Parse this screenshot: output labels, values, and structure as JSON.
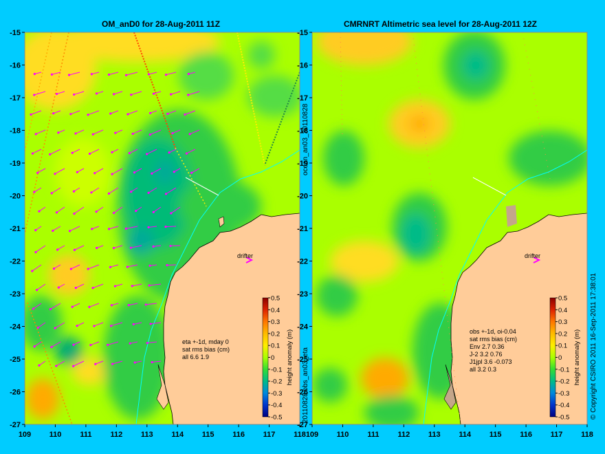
{
  "panels": [
    {
      "title": "OM_anD0 for 28-Aug-2011 11Z",
      "stats": [
        "eta +-1d, mday 0",
        "sat rms bias (cm)",
        "all 6.6 1.9"
      ]
    },
    {
      "title": "CMRNRT Altimetric sea level  for 28-Aug-2011 12Z",
      "stats": [
        "obs +-1d, oi-0.04",
        "sat rms bias (cm)",
        "Env    2.7 0.36",
        "J-2    3.2 0.76",
        "J1jpl  3.6 -0.073",
        "all 3.2 0.3"
      ]
    }
  ],
  "drifter_label": "drifter",
  "y_ticks": [
    "-15",
    "-16",
    "-17",
    "-18",
    "-19",
    "-20",
    "-21",
    "-22",
    "-23",
    "-24",
    "-25",
    "-26",
    "-27"
  ],
  "x_ticks": [
    "109",
    "110",
    "111",
    "112",
    "113",
    "114",
    "115",
    "116",
    "117",
    "118"
  ],
  "colorbar": {
    "label": "height anomaly (m)",
    "ticks": [
      "0.5",
      "0.4",
      "0.3",
      "0.2",
      "0.1",
      "0",
      "-0.1",
      "-0.2",
      "-0.3",
      "-0.4",
      "-0.5"
    ]
  },
  "vertical_text": {
    "upper": "ocean_an03_20110828",
    "lower": "20110828.obs_an03_eta",
    "copyright": "© Copyright CSIRO 2011  16-Sep-2011 17:38:01"
  },
  "colors": {
    "background": "#00ccff",
    "land": "#ffcc99",
    "positive": "#ffcc00",
    "zero": "#aaff00",
    "negative": "#00bb44",
    "vector": "#ff00ff"
  }
}
